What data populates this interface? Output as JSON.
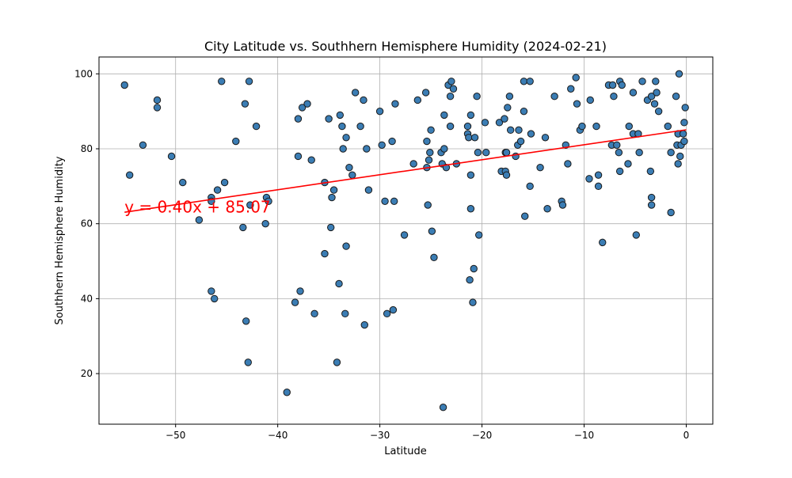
{
  "chart_data": {
    "type": "scatter",
    "title": "City Latitude vs. Southhern Hemisphere Humidity (2024-02-21)",
    "xlabel": "Latitude",
    "ylabel": "Southhern Hemisphere Humidity",
    "xlim": [
      -57.5,
      2.6
    ],
    "ylim": [
      6.5,
      104.5
    ],
    "xticks": [
      -50,
      -40,
      -30,
      -20,
      -10,
      0
    ],
    "yticks": [
      20,
      40,
      60,
      80,
      100
    ],
    "grid": true,
    "point_color": "#3b7db4",
    "point_edge": "#1a1a1a",
    "regression": {
      "slope": 0.4,
      "intercept": 85.07,
      "x_range": [
        -55,
        0
      ],
      "color": "#ff0000",
      "equation_label": "y = 0.40x + 85.07",
      "label_x": -55,
      "label_y": 63
    },
    "points": [
      [
        -55,
        97
      ],
      [
        -54.5,
        73
      ],
      [
        -53.2,
        81
      ],
      [
        -51.8,
        93
      ],
      [
        -51.8,
        91
      ],
      [
        -50.4,
        78
      ],
      [
        -49.3,
        71
      ],
      [
        -47.7,
        61
      ],
      [
        -46.5,
        67
      ],
      [
        -46.5,
        66
      ],
      [
        -46.5,
        42
      ],
      [
        -46.2,
        40
      ],
      [
        -45.9,
        69
      ],
      [
        -45.5,
        98
      ],
      [
        -45.2,
        71
      ],
      [
        -44.1,
        82
      ],
      [
        -43.4,
        59
      ],
      [
        -43.2,
        92
      ],
      [
        -43.1,
        34
      ],
      [
        -42.9,
        23
      ],
      [
        -42.8,
        98
      ],
      [
        -42.7,
        65
      ],
      [
        -42.1,
        86
      ],
      [
        -41.2,
        60
      ],
      [
        -41.1,
        67
      ],
      [
        -40.9,
        66
      ],
      [
        -39.1,
        15
      ],
      [
        -38.3,
        39
      ],
      [
        -38.0,
        88
      ],
      [
        -38.0,
        78
      ],
      [
        -37.8,
        42
      ],
      [
        -37.6,
        91
      ],
      [
        -37.1,
        92
      ],
      [
        -36.7,
        77
      ],
      [
        -36.4,
        36
      ],
      [
        -35.4,
        71
      ],
      [
        -35.4,
        52
      ],
      [
        -35.0,
        88
      ],
      [
        -34.8,
        59
      ],
      [
        -34.7,
        67
      ],
      [
        -34.5,
        69
      ],
      [
        -34.2,
        23
      ],
      [
        -34.0,
        44
      ],
      [
        -33.9,
        89
      ],
      [
        -33.7,
        86
      ],
      [
        -33.6,
        80
      ],
      [
        -33.4,
        36
      ],
      [
        -33.3,
        83
      ],
      [
        -33.3,
        54
      ],
      [
        -33.0,
        75
      ],
      [
        -32.7,
        73
      ],
      [
        -32.4,
        95
      ],
      [
        -31.9,
        86
      ],
      [
        -31.6,
        93
      ],
      [
        -31.5,
        33
      ],
      [
        -31.3,
        80
      ],
      [
        -31.1,
        69
      ],
      [
        -30.0,
        90
      ],
      [
        -29.8,
        81
      ],
      [
        -29.5,
        66
      ],
      [
        -29.3,
        36
      ],
      [
        -28.8,
        82
      ],
      [
        -28.7,
        37
      ],
      [
        -28.6,
        66
      ],
      [
        -28.5,
        92
      ],
      [
        -27.6,
        57
      ],
      [
        -26.7,
        76
      ],
      [
        -26.3,
        93
      ],
      [
        -25.5,
        95
      ],
      [
        -25.4,
        82
      ],
      [
        -25.4,
        75
      ],
      [
        -25.3,
        65
      ],
      [
        -25.2,
        77
      ],
      [
        -25.1,
        79
      ],
      [
        -25.0,
        85
      ],
      [
        -24.9,
        58
      ],
      [
        -24.7,
        51
      ],
      [
        -24.0,
        79
      ],
      [
        -23.9,
        76
      ],
      [
        -23.8,
        11
      ],
      [
        -23.7,
        80
      ],
      [
        -23.7,
        89
      ],
      [
        -23.5,
        75
      ],
      [
        -23.3,
        97
      ],
      [
        -23.1,
        86
      ],
      [
        -23.1,
        94
      ],
      [
        -23.0,
        98
      ],
      [
        -22.8,
        96
      ],
      [
        -22.5,
        76
      ],
      [
        -21.4,
        86
      ],
      [
        -21.4,
        84
      ],
      [
        -21.3,
        83
      ],
      [
        -21.2,
        45
      ],
      [
        -21.1,
        89
      ],
      [
        -21.1,
        73
      ],
      [
        -21.1,
        64
      ],
      [
        -20.9,
        39
      ],
      [
        -20.8,
        48
      ],
      [
        -20.7,
        83
      ],
      [
        -20.5,
        94
      ],
      [
        -20.4,
        79
      ],
      [
        -20.3,
        57
      ],
      [
        -19.7,
        87
      ],
      [
        -19.6,
        79
      ],
      [
        -18.3,
        87
      ],
      [
        -18.1,
        74
      ],
      [
        -17.8,
        88
      ],
      [
        -17.7,
        79
      ],
      [
        -17.7,
        74
      ],
      [
        -17.6,
        73
      ],
      [
        -17.6,
        79
      ],
      [
        -17.5,
        91
      ],
      [
        -17.3,
        94
      ],
      [
        -17.2,
        85
      ],
      [
        -16.7,
        78
      ],
      [
        -16.5,
        81
      ],
      [
        -16.4,
        85
      ],
      [
        -16.2,
        82
      ],
      [
        -15.9,
        90
      ],
      [
        -15.9,
        98
      ],
      [
        -15.8,
        62
      ],
      [
        -15.3,
        98
      ],
      [
        -15.3,
        70
      ],
      [
        -15.2,
        84
      ],
      [
        -14.3,
        75
      ],
      [
        -13.8,
        83
      ],
      [
        -13.6,
        64
      ],
      [
        -12.9,
        94
      ],
      [
        -12.2,
        66
      ],
      [
        -12.1,
        65
      ],
      [
        -11.8,
        81
      ],
      [
        -11.6,
        76
      ],
      [
        -11.3,
        96
      ],
      [
        -10.8,
        99
      ],
      [
        -10.7,
        92
      ],
      [
        -10.4,
        85
      ],
      [
        -10.2,
        86
      ],
      [
        -9.5,
        72
      ],
      [
        -9.4,
        93
      ],
      [
        -8.8,
        86
      ],
      [
        -8.6,
        73
      ],
      [
        -8.6,
        70
      ],
      [
        -8.2,
        55
      ],
      [
        -7.6,
        97
      ],
      [
        -7.3,
        81
      ],
      [
        -7.2,
        97
      ],
      [
        -7.1,
        94
      ],
      [
        -6.8,
        81
      ],
      [
        -6.6,
        79
      ],
      [
        -6.5,
        98
      ],
      [
        -6.5,
        74
      ],
      [
        -6.3,
        97
      ],
      [
        -5.7,
        76
      ],
      [
        -5.6,
        86
      ],
      [
        -5.2,
        84
      ],
      [
        -5.2,
        95
      ],
      [
        -4.9,
        57
      ],
      [
        -4.7,
        84
      ],
      [
        -4.6,
        79
      ],
      [
        -4.3,
        98
      ],
      [
        -3.8,
        93
      ],
      [
        -3.5,
        74
      ],
      [
        -3.4,
        94
      ],
      [
        -3.4,
        67
      ],
      [
        -3.4,
        65
      ],
      [
        -3.1,
        92
      ],
      [
        -3.0,
        98
      ],
      [
        -2.9,
        95
      ],
      [
        -2.7,
        90
      ],
      [
        -1.8,
        86
      ],
      [
        -1.5,
        63
      ],
      [
        -1.5,
        79
      ],
      [
        -1.0,
        94
      ],
      [
        -0.9,
        81
      ],
      [
        -0.8,
        76
      ],
      [
        -0.8,
        84
      ],
      [
        -0.7,
        100
      ],
      [
        -0.6,
        78
      ],
      [
        -0.5,
        81
      ],
      [
        -0.3,
        84
      ],
      [
        -0.2,
        82
      ],
      [
        -0.2,
        87
      ],
      [
        -0.1,
        91
      ]
    ]
  }
}
